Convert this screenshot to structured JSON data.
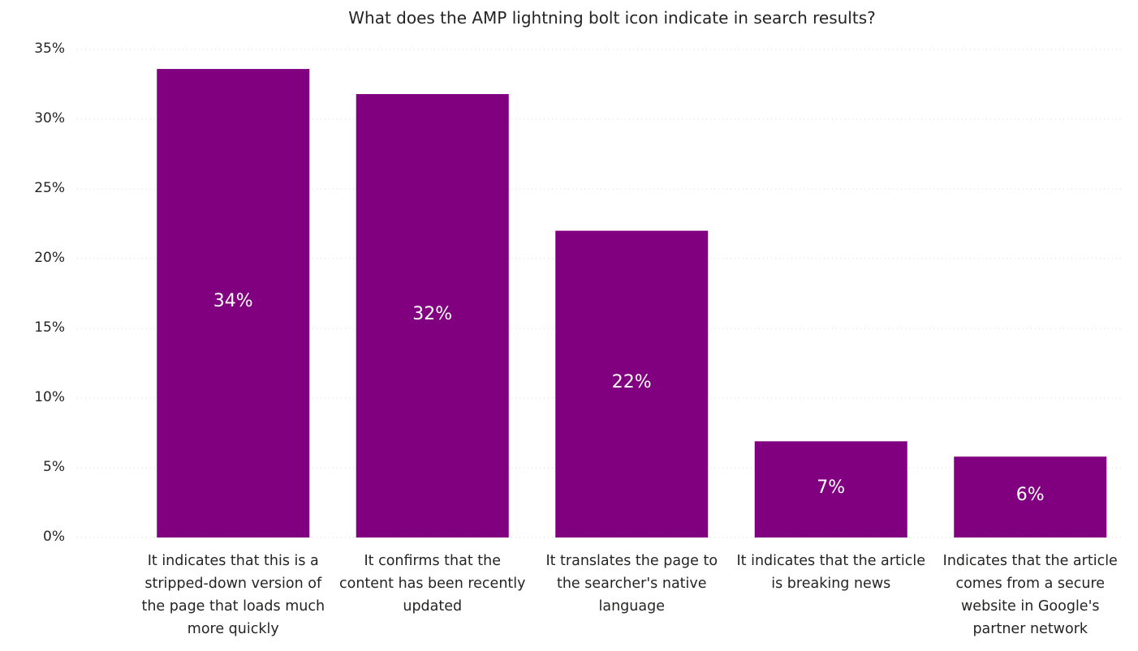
{
  "chart_data": {
    "type": "bar",
    "title": "What does the AMP lightning bolt icon indicate in search results?",
    "xlabel": "",
    "ylabel": "",
    "ylim": [
      0,
      35
    ],
    "yticks": [
      "0%",
      "5%",
      "10%",
      "15%",
      "20%",
      "25%",
      "30%",
      "35%"
    ],
    "ytick_values": [
      0,
      5,
      10,
      15,
      20,
      25,
      30,
      35
    ],
    "grid": true,
    "categories": [
      "It indicates that this is a stripped-down version of the page that loads much more quickly",
      "It confirms that the content has been recently updated",
      "It translates the page to the searcher's native language",
      "It indicates that the article is breaking news",
      "Indicates that the article comes from a secure website in Google's partner network"
    ],
    "values": [
      33.6,
      31.8,
      22.0,
      6.9,
      5.8
    ],
    "data_labels": [
      "34%",
      "32%",
      "22%",
      "7%",
      "6%"
    ],
    "bar_color": "#800080",
    "grid_color": "#d9d9d9"
  }
}
